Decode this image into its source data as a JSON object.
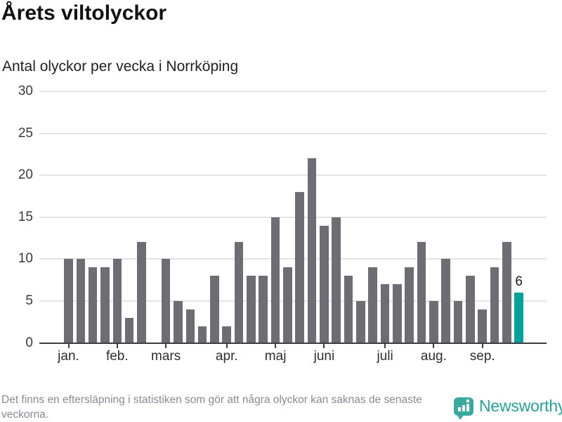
{
  "header": {
    "title": "Årets viltolyckor",
    "subtitle": "Antal olyckor per vecka i Norrköping"
  },
  "chart_data": {
    "type": "bar",
    "title": "Årets viltolyckor",
    "subtitle": "Antal olyckor per vecka i Norrköping",
    "ylabel": "",
    "xlabel": "",
    "unit": "olyckor per vecka",
    "values": [
      10,
      10,
      9,
      9,
      10,
      3,
      12,
      null,
      10,
      5,
      4,
      2,
      8,
      2,
      12,
      8,
      8,
      15,
      9,
      18,
      22,
      14,
      15,
      8,
      5,
      9,
      7,
      7,
      9,
      12,
      5,
      10,
      5,
      8,
      4,
      9,
      12,
      6
    ],
    "x_month_ticks": [
      {
        "label": "jan.",
        "index": 0
      },
      {
        "label": "feb.",
        "index": 4
      },
      {
        "label": "mars",
        "index": 8
      },
      {
        "label": "apr.",
        "index": 13
      },
      {
        "label": "maj",
        "index": 17
      },
      {
        "label": "juni",
        "index": 21
      },
      {
        "label": "juli",
        "index": 26
      },
      {
        "label": "aug.",
        "index": 30
      },
      {
        "label": "sep.",
        "index": 34
      }
    ],
    "y_ticks": [
      0,
      5,
      10,
      15,
      20,
      25,
      30
    ],
    "ylim": [
      0,
      30
    ],
    "grid": true,
    "legend": false,
    "annotation": {
      "text": "6",
      "index": 37
    },
    "highlight_index": 37,
    "colors": {
      "bar": "#6e6d73",
      "highlight": "#00a29b",
      "grid": "#e3e3e3",
      "axis": "#3d3d3d"
    }
  },
  "footer": {
    "note": "Det finns en eftersläpning i statistiken som gör att några olyckor kan saknas de senaste veckorna.",
    "brand": "Newsworthy"
  }
}
